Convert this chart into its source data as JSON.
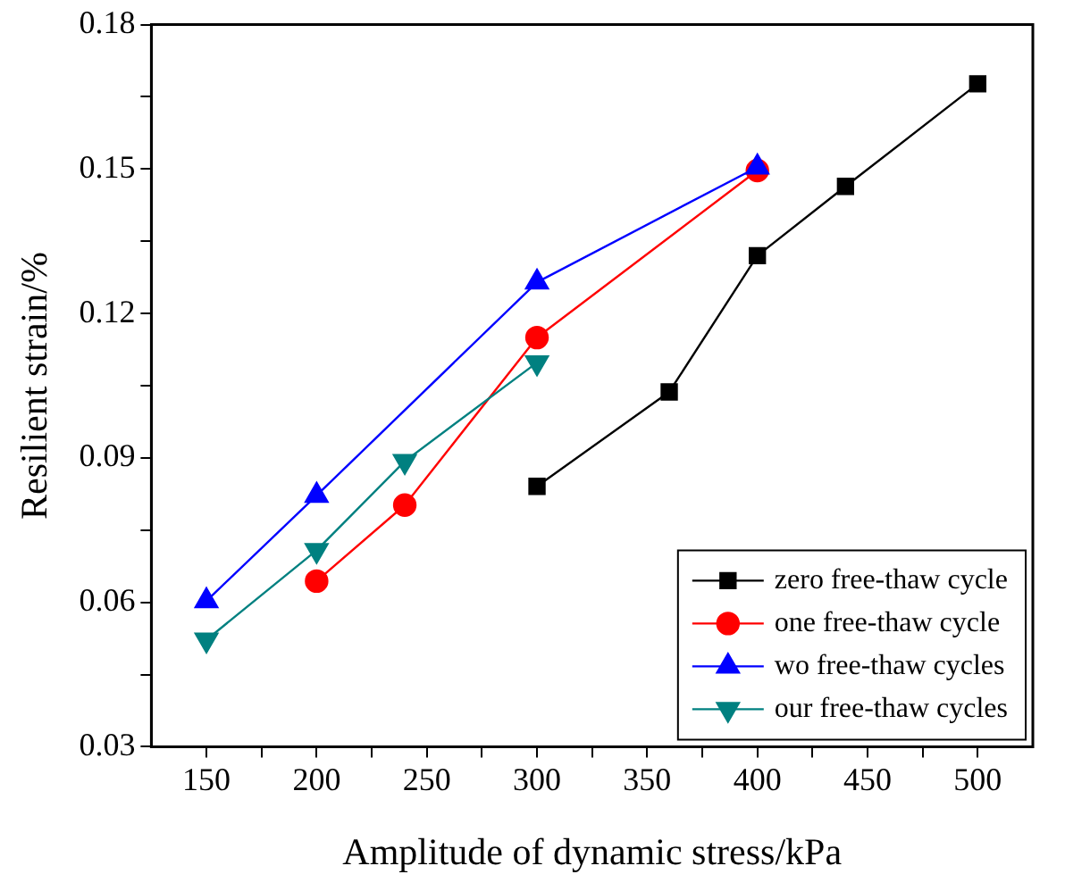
{
  "chart_data": {
    "type": "line",
    "xlabel": "Amplitude of dynamic stress/kPa",
    "ylabel": "Resilient strain/%",
    "xlim": [
      125,
      525
    ],
    "xticks": [
      150,
      {
        "value": 175,
        "label": null
      },
      200,
      {
        "value": 225,
        "label": null
      },
      250,
      {
        "value": 275,
        "label": null
      },
      300,
      {
        "value": 325,
        "label": null
      },
      350,
      {
        "value": 375,
        "label": null
      },
      400,
      {
        "value": 425,
        "label": null
      },
      450,
      {
        "value": 475,
        "label": null
      },
      500
    ],
    "ylim": [
      0.03,
      0.18
    ],
    "yticks": [
      {
        "value": 0.03,
        "label": "0.03"
      },
      {
        "value": 0.045,
        "label": null
      },
      {
        "value": 0.06,
        "label": "0.06"
      },
      {
        "value": 0.075,
        "label": null
      },
      {
        "value": 0.09,
        "label": "0.09"
      },
      {
        "value": 0.105,
        "label": null
      },
      {
        "value": 0.12,
        "label": "0.12"
      },
      {
        "value": 0.135,
        "label": null
      },
      {
        "value": 0.15,
        "label": "0.15"
      },
      {
        "value": 0.165,
        "label": null
      },
      {
        "value": 0.18,
        "label": "0.18"
      }
    ],
    "grid": false,
    "legend": "bottom right",
    "series": [
      {
        "name": "zero free-thaw cycle",
        "color": "#000000",
        "marker": "square",
        "x": [
          300,
          360,
          400,
          440,
          500
        ],
        "values": [
          0.0841,
          0.1037,
          0.132,
          0.1464,
          0.1677
        ]
      },
      {
        "name": "one free-thaw cycle",
        "color": "#ff0000",
        "marker": "circle",
        "x": [
          200,
          240,
          300,
          400
        ],
        "values": [
          0.0644,
          0.0802,
          0.115,
          0.1497
        ]
      },
      {
        "name": "wo free-thaw cycles",
        "color": "#0000ff",
        "marker": "triangle",
        "x": [
          150,
          200,
          300,
          400
        ],
        "values": [
          0.0603,
          0.0822,
          0.1265,
          0.1504
        ]
      },
      {
        "name": "our free-thaw cycles",
        "color": "#008080",
        "marker": "triangle-down",
        "x": [
          150,
          200,
          240,
          300
        ],
        "values": [
          0.0522,
          0.0708,
          0.0893,
          0.1098
        ]
      }
    ]
  }
}
